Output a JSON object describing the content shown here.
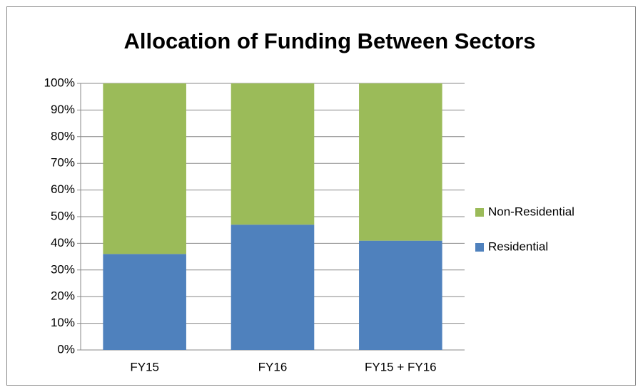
{
  "chart_data": {
    "type": "stacked_bar",
    "title": "Allocation of Funding Between Sectors",
    "categories": [
      "FY15",
      "FY16",
      "FY15 + FY16"
    ],
    "series": [
      {
        "name": "Residential",
        "color": "#4f81bd",
        "values": [
          36,
          47,
          41
        ]
      },
      {
        "name": "Non-Residential",
        "color": "#9bbb59",
        "values": [
          64,
          53,
          59
        ]
      }
    ],
    "ylim": [
      0,
      100
    ],
    "yticks": [
      {
        "value": 0,
        "label": "0%"
      },
      {
        "value": 10,
        "label": "10%"
      },
      {
        "value": 20,
        "label": "20%"
      },
      {
        "value": 30,
        "label": "30%"
      },
      {
        "value": 40,
        "label": "40%"
      },
      {
        "value": 50,
        "label": "50%"
      },
      {
        "value": 60,
        "label": "60%"
      },
      {
        "value": 70,
        "label": "70%"
      },
      {
        "value": 80,
        "label": "80%"
      },
      {
        "value": 90,
        "label": "90%"
      },
      {
        "value": 100,
        "label": "100%"
      }
    ],
    "grid": true,
    "legend": "right"
  }
}
